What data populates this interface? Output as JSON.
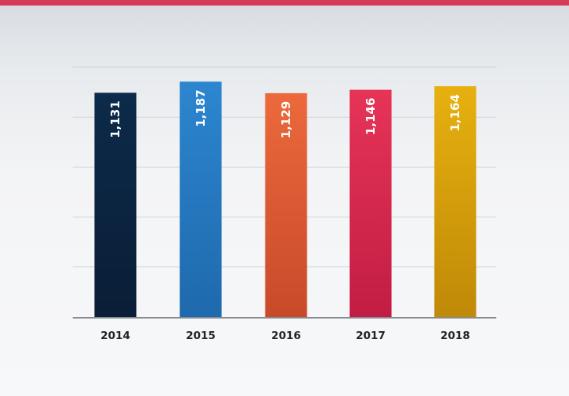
{
  "colors": {
    "top_bar": "#d63a5a",
    "grid": "#cfd3d8",
    "axis": "#888c91"
  },
  "chart_data": {
    "type": "bar",
    "categories": [
      "2014",
      "2015",
      "2016",
      "2017",
      "2018"
    ],
    "values": [
      1131,
      1187,
      1129,
      1146,
      1164
    ],
    "value_labels": [
      "1,131",
      "1,187",
      "1,129",
      "1,146",
      "1,164"
    ],
    "colors": [
      [
        "#0c2a4a",
        "#0a1e36"
      ],
      [
        "#2c86cf",
        "#1f69ad"
      ],
      [
        "#ec693c",
        "#c84a2a"
      ],
      [
        "#e63457",
        "#c21d44"
      ],
      [
        "#e6b10f",
        "#c08908"
      ]
    ],
    "ylim": [
      0,
      1260
    ],
    "gridlines": 5,
    "grid": true,
    "title": "",
    "xlabel": "",
    "ylabel": ""
  }
}
